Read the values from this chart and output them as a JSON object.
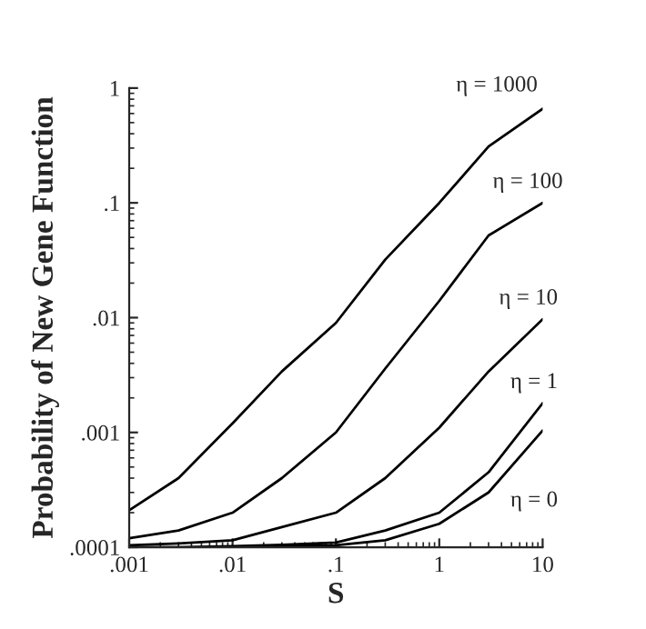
{
  "chart_data": {
    "type": "line",
    "xlabel": "S",
    "ylabel": "Probability of New Gene Function",
    "log": "xy",
    "x": [
      0.001,
      0.003,
      0.01,
      0.03,
      0.1,
      0.3,
      1,
      3,
      10
    ],
    "series": [
      {
        "name": "η = 1000",
        "color": "#000000",
        "values": [
          0.00021,
          0.0004,
          0.0012,
          0.0034,
          0.009,
          0.032,
          0.1,
          0.31,
          0.66
        ]
      },
      {
        "name": "η = 100",
        "color": "#000000",
        "values": [
          0.00012,
          0.00014,
          0.0002,
          0.0004,
          0.001,
          0.0036,
          0.014,
          0.052,
          0.1
        ]
      },
      {
        "name": "η = 10",
        "color": "#000000",
        "values": [
          0.000104,
          0.000108,
          0.000115,
          0.00015,
          0.0002,
          0.0004,
          0.0011,
          0.0034,
          0.0097
        ]
      },
      {
        "name": "η = 1",
        "color": "#000000",
        "values": [
          0.0001,
          0.0001,
          0.000102,
          0.000105,
          0.00011,
          0.00014,
          0.0002,
          0.00045,
          0.0018
        ]
      },
      {
        "name": "η = 0",
        "color": "#000000",
        "values": [
          0.0001,
          0.0001,
          0.0001,
          0.000102,
          0.000104,
          0.000115,
          0.00016,
          0.0003,
          0.00104
        ]
      }
    ],
    "xlim": [
      0.001,
      10
    ],
    "ylim": [
      0.0001,
      1
    ],
    "xticks": [
      {
        "value": 0.001,
        "label": ".001"
      },
      {
        "value": 0.01,
        "label": ".01"
      },
      {
        "value": 0.1,
        "label": ".1"
      },
      1,
      10
    ],
    "yticks": [
      {
        "value": 0.0001,
        "label": ".0001"
      },
      {
        "value": 0.001,
        "label": ".001"
      },
      {
        "value": 0.01,
        "label": ".01"
      },
      {
        "value": 0.1,
        "label": ".1"
      },
      1
    ],
    "grid": false,
    "legend": false,
    "marker": "none",
    "line_style": "solid"
  }
}
